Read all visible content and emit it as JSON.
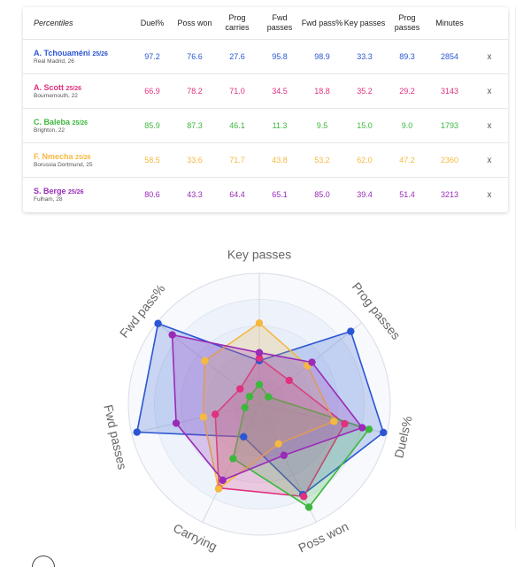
{
  "table": {
    "header": {
      "label": "Percentiles",
      "columns": [
        "Duel%",
        "Poss won",
        "Prog carries",
        "Fwd passes",
        "Fwd pass%",
        "Key passes",
        "Prog passes",
        "Minutes"
      ],
      "remove_icon": "x"
    },
    "players": [
      {
        "name": "A. Tchouaméni",
        "season": "25/26",
        "team": "Real Madrid, 26",
        "color": "#2b56d3",
        "values": [
          "97.2",
          "76.6",
          "27.6",
          "95.8",
          "98.9",
          "33.3",
          "89.3",
          "2854"
        ]
      },
      {
        "name": "A. Scott",
        "season": "25/26",
        "team": "Bournemouth, 22",
        "color": "#e0307e",
        "values": [
          "66.9",
          "78.2",
          "71.0",
          "34.5",
          "18.8",
          "35.2",
          "29.2",
          "3143"
        ]
      },
      {
        "name": "C. Baleba",
        "season": "25/26",
        "team": "Brighton, 22",
        "color": "#3cb83c",
        "values": [
          "85.9",
          "87.3",
          "46.1",
          "11.3",
          "9.5",
          "15.0",
          "9.0",
          "1793"
        ]
      },
      {
        "name": "F. Nmecha",
        "season": "25/26",
        "team": "Borussia Dortmund, 25",
        "color": "#f5b940",
        "values": [
          "58.5",
          "33.6",
          "71.7",
          "43.8",
          "53.2",
          "62.0",
          "47.2",
          "2360"
        ]
      },
      {
        "name": "S. Berge",
        "season": "25/26",
        "team": "Fulham, 28",
        "color": "#9a2ab8",
        "values": [
          "80.6",
          "43.3",
          "64.4",
          "65.1",
          "85.0",
          "39.4",
          "51.4",
          "3213"
        ]
      }
    ]
  },
  "chart_data": {
    "type": "radar",
    "axes": [
      "Key passes",
      "Prog passes",
      "Duels%",
      "Poss won",
      "Carrying",
      "Fwd passes",
      "Fwd pass%"
    ],
    "range": [
      0,
      100
    ],
    "series": [
      {
        "name": "A. Tchouaméni",
        "color": "#2b56d3",
        "values": [
          33.3,
          89.3,
          97.2,
          76.6,
          27.6,
          95.8,
          98.9
        ]
      },
      {
        "name": "A. Scott",
        "color": "#e0307e",
        "values": [
          35.2,
          29.2,
          66.9,
          78.2,
          71.0,
          34.5,
          18.8
        ]
      },
      {
        "name": "C. Baleba",
        "color": "#3cb83c",
        "values": [
          15.0,
          9.0,
          85.9,
          87.3,
          46.1,
          11.3,
          9.5
        ]
      },
      {
        "name": "F. Nmecha",
        "color": "#f5b940",
        "values": [
          62.0,
          47.2,
          58.5,
          33.6,
          71.7,
          43.8,
          53.2
        ]
      },
      {
        "name": "S. Berge",
        "color": "#9a2ab8",
        "values": [
          39.4,
          51.4,
          80.6,
          43.3,
          64.4,
          65.1,
          85.0
        ]
      }
    ]
  }
}
